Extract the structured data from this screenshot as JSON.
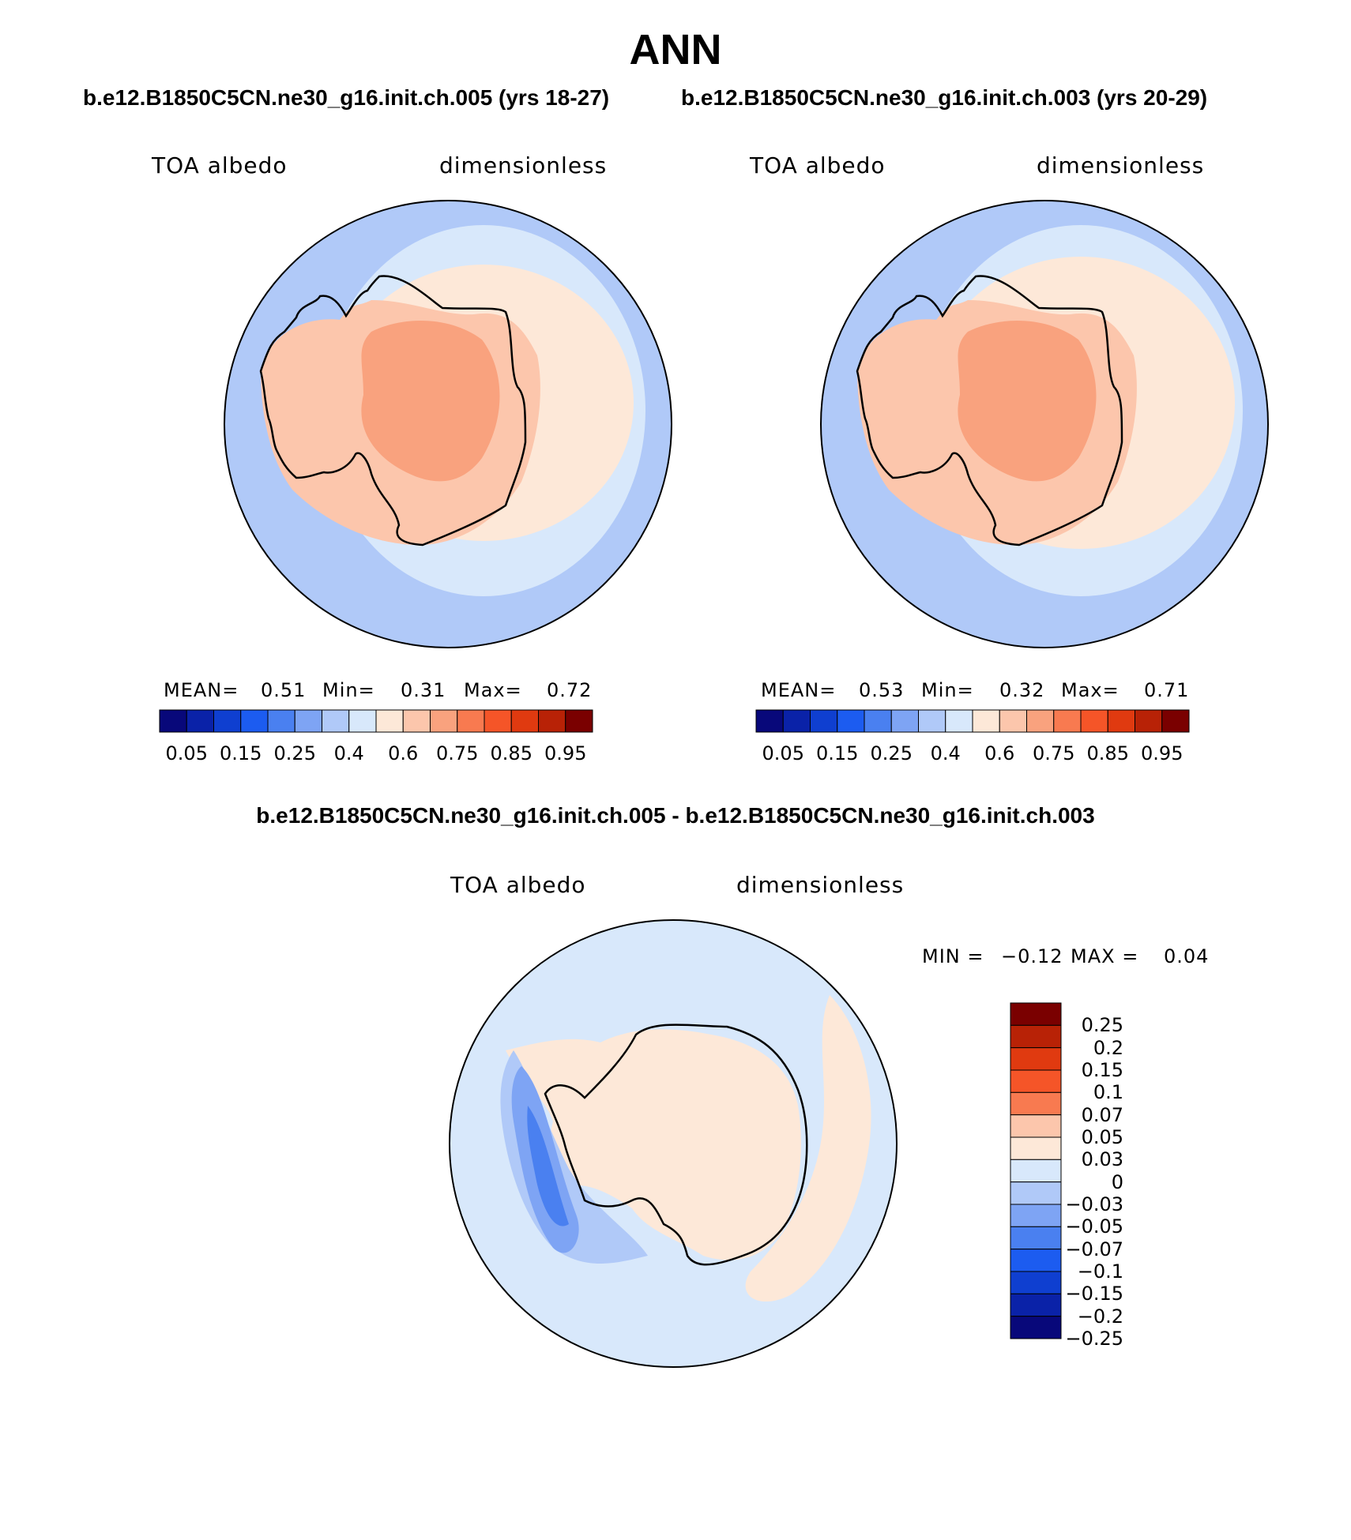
{
  "title": "ANN",
  "case1_title": "b.e12.B1850C5CN.ne30_g16.init.ch.005 (yrs 18-27)",
  "case2_title": "b.e12.B1850C5CN.ne30_g16.init.ch.003 (yrs 20-29)",
  "diff_title": "b.e12.B1850C5CN.ne30_g16.init.ch.005 - b.e12.B1850C5CN.ne30_g16.init.ch.003",
  "panels": [
    {
      "variable": "TOA albedo",
      "units": "dimensionless",
      "mean_label": "MEAN=",
      "mean": "0.51",
      "min_label": "Min=",
      "min": "0.31",
      "max_label": "Max=",
      "max": "0.72"
    },
    {
      "variable": "TOA albedo",
      "units": "dimensionless",
      "mean_label": "MEAN=",
      "mean": "0.53",
      "min_label": "Min=",
      "min": "0.32",
      "max_label": "Max=",
      "max": "0.71"
    }
  ],
  "diff_panel": {
    "variable": "TOA albedo",
    "units": "dimensionless",
    "min_label": "MIN =",
    "min": "−0.12",
    "max_label": "MAX =",
    "max": "0.04"
  },
  "colorbar_main": {
    "colors": [
      "#08087a",
      "#0a22a8",
      "#0f3fd0",
      "#1c5cf0",
      "#4a80f0",
      "#7ea4f4",
      "#b0c9f8",
      "#d8e8fb",
      "#fde8d8",
      "#fcc6ac",
      "#f9a27e",
      "#f87a50",
      "#f55528",
      "#e03a10",
      "#b82206",
      "#7a0000"
    ],
    "labels": [
      "0.05",
      "0.15",
      "0.25",
      "0.4",
      "0.6",
      "0.75",
      "0.85",
      "0.95"
    ]
  },
  "colorbar_diff": {
    "colors": [
      "#7a0000",
      "#b82206",
      "#e03a10",
      "#f55528",
      "#f87a50",
      "#fcc6ac",
      "#fde8d8",
      "#d8e8fb",
      "#b0c9f8",
      "#7ea4f4",
      "#4a80f0",
      "#1c5cf0",
      "#0f3fd0",
      "#0a22a8",
      "#08087a"
    ],
    "labels": [
      "0.25",
      "0.2",
      "0.15",
      "0.1",
      "0.07",
      "0.05",
      "0.03",
      "0",
      "−0.03",
      "−0.05",
      "−0.07",
      "−0.1",
      "−0.15",
      "−0.2",
      "−0.25"
    ]
  }
}
